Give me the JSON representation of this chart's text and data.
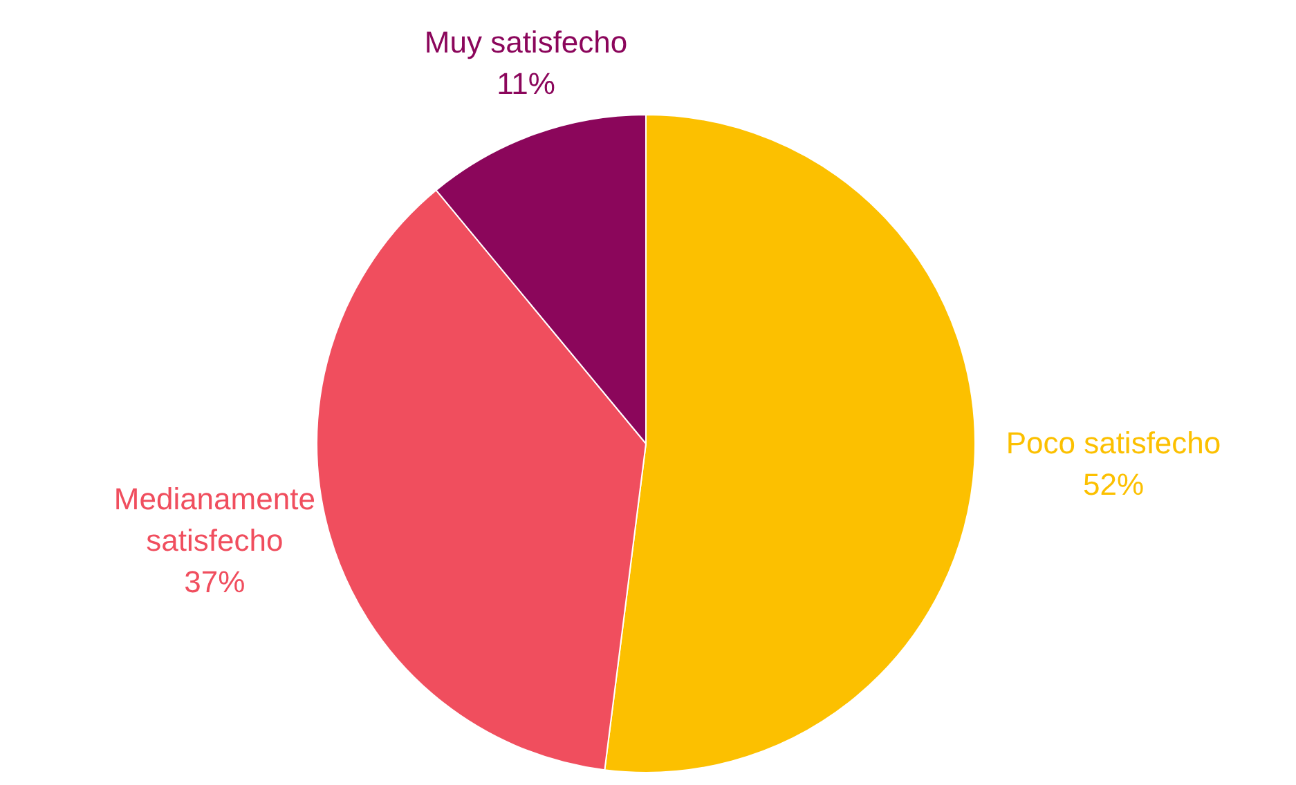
{
  "chart_data": {
    "type": "pie",
    "categories": [
      "Poco satisfecho",
      "Medianamente satisfecho",
      "Muy satisfecho"
    ],
    "values": [
      52,
      37,
      11
    ],
    "value_labels": [
      "52%",
      "37%",
      "11%"
    ],
    "colors": [
      "#fcc000",
      "#f04e5e",
      "#8b065b"
    ]
  }
}
